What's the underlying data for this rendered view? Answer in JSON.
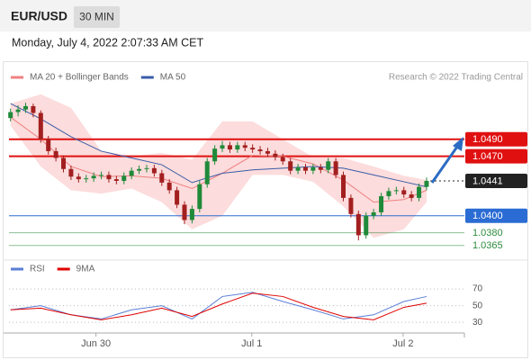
{
  "header": {
    "symbol": "EUR/USD",
    "interval": "30 MIN",
    "timestamp": "Monday, July 4, 2022 2:07:33 AM CET",
    "source": "Research © 2022 Trading Central"
  },
  "chart_data": [
    {
      "type": "candlestick",
      "open": [
        1.0515,
        1.0522,
        1.0525,
        1.0529,
        1.0521,
        1.049,
        1.0476,
        1.0468,
        1.0455,
        1.0446,
        1.0443,
        1.0444,
        1.0447,
        1.0448,
        1.0443,
        1.0441,
        1.0447,
        1.0453,
        1.0455,
        1.0456,
        1.045,
        1.0439,
        1.043,
        1.0413,
        1.0395,
        1.0408,
        1.0437,
        1.0464,
        1.0479,
        1.0483,
        1.0478,
        1.0483,
        1.048,
        1.0478,
        1.0476,
        1.0473,
        1.0469,
        1.0464,
        1.0453,
        1.0457,
        1.0453,
        1.0457,
        1.0454,
        1.0464,
        1.0448,
        1.0421,
        1.0402,
        1.0377,
        1.04,
        1.0404,
        1.0423,
        1.0429,
        1.043,
        1.0425,
        1.0421,
        1.0434
      ],
      "high": [
        1.0526,
        1.053,
        1.0533,
        1.0532,
        1.0524,
        1.0494,
        1.048,
        1.0471,
        1.0459,
        1.045,
        1.0448,
        1.0451,
        1.0452,
        1.0452,
        1.0447,
        1.0451,
        1.0457,
        1.0459,
        1.046,
        1.046,
        1.0454,
        1.0443,
        1.0434,
        1.0417,
        1.0412,
        1.0441,
        1.0468,
        1.0483,
        1.0488,
        1.0487,
        1.0487,
        1.0487,
        1.0484,
        1.0482,
        1.048,
        1.0477,
        1.0473,
        1.0468,
        1.0461,
        1.0461,
        1.0461,
        1.0461,
        1.0468,
        1.0468,
        1.0452,
        1.0425,
        1.0406,
        1.0404,
        1.0408,
        1.0427,
        1.0433,
        1.0434,
        1.0434,
        1.0429,
        1.0438,
        1.0445
      ],
      "low": [
        1.0511,
        1.0517,
        1.0521,
        1.0516,
        1.0486,
        1.0472,
        1.0464,
        1.0451,
        1.0442,
        1.0439,
        1.0439,
        1.044,
        1.0443,
        1.0439,
        1.0437,
        1.0437,
        1.0443,
        1.0449,
        1.0451,
        1.0446,
        1.0435,
        1.0426,
        1.0409,
        1.039,
        1.0391,
        1.0404,
        1.0433,
        1.046,
        1.0475,
        1.0474,
        1.0474,
        1.0476,
        1.0474,
        1.0472,
        1.0469,
        1.0465,
        1.046,
        1.0449,
        1.0449,
        1.0449,
        1.0449,
        1.045,
        1.045,
        1.0444,
        1.0417,
        1.0398,
        1.0371,
        1.0373,
        1.0396,
        1.04,
        1.0419,
        1.0425,
        1.0421,
        1.0417,
        1.0417,
        1.043
      ],
      "close": [
        1.0522,
        1.0525,
        1.0529,
        1.0521,
        1.049,
        1.0476,
        1.0468,
        1.0455,
        1.0446,
        1.0443,
        1.0444,
        1.0447,
        1.0448,
        1.0443,
        1.0441,
        1.0447,
        1.0453,
        1.0455,
        1.0456,
        1.045,
        1.0439,
        1.043,
        1.0413,
        1.0395,
        1.0408,
        1.0437,
        1.0464,
        1.0479,
        1.0483,
        1.0478,
        1.0483,
        1.048,
        1.0478,
        1.0476,
        1.0473,
        1.0469,
        1.0464,
        1.0453,
        1.0457,
        1.0453,
        1.0457,
        1.0454,
        1.0464,
        1.0448,
        1.0421,
        1.0402,
        1.0377,
        1.04,
        1.0404,
        1.0423,
        1.0429,
        1.043,
        1.0425,
        1.0421,
        1.0434,
        1.0441
      ],
      "up_color": "#1f8a3a",
      "down_color": "#a31f1f",
      "xlim": [
        -0.2,
        60
      ],
      "ylim": [
        1.0352,
        1.0548
      ],
      "overlays": [
        {
          "name": "MA 20 + Bollinger Bands",
          "color": "#f08080",
          "band_color": "#fbd3d3",
          "x": [
            0,
            4,
            8,
            12,
            16,
            20,
            24,
            28,
            32,
            36,
            40,
            44,
            48,
            52,
            55
          ],
          "values": [
            1.0516,
            1.049,
            1.0458,
            1.0446,
            1.0447,
            1.0444,
            1.0432,
            1.045,
            1.0471,
            1.047,
            1.0461,
            1.0442,
            1.0416,
            1.0419,
            1.043
          ],
          "upper": [
            1.0532,
            1.0543,
            1.0527,
            1.0476,
            1.047,
            1.0474,
            1.0466,
            1.0511,
            1.0511,
            1.049,
            1.0469,
            1.0468,
            1.0458,
            1.0447,
            1.0442
          ],
          "lower": [
            1.0506,
            1.0458,
            1.043,
            1.0426,
            1.0432,
            1.0416,
            1.0384,
            1.04,
            1.0448,
            1.0448,
            1.044,
            1.0411,
            1.0374,
            1.0384,
            1.0416
          ]
        },
        {
          "name": "MA 50",
          "color": "#3a5ca8",
          "x": [
            0,
            4,
            8,
            12,
            16,
            20,
            24,
            28,
            32,
            36,
            40,
            44,
            48,
            52,
            55
          ],
          "values": [
            1.0532,
            1.0514,
            1.0493,
            1.0476,
            1.0468,
            1.046,
            1.0439,
            1.045,
            1.0454,
            1.0456,
            1.0458,
            1.0456,
            1.0448,
            1.044,
            1.0434
          ]
        }
      ],
      "levels": [
        {
          "value": 1.049,
          "label": "1.0490",
          "color": "#e01010",
          "style": "solid",
          "boxed": true
        },
        {
          "value": 1.047,
          "label": "1.0470",
          "color": "#e01010",
          "style": "solid",
          "boxed": true
        },
        {
          "value": 1.0441,
          "label": "1.0441",
          "color": "#222222",
          "style": "dotted",
          "boxed": true
        },
        {
          "value": 1.04,
          "label": "1.0400",
          "color": "#2b6cd4",
          "style": "solid",
          "boxed": true
        },
        {
          "value": 1.038,
          "label": "1.0380",
          "color": "#2e8b3e",
          "style": "thin",
          "boxed": false
        },
        {
          "value": 1.0365,
          "label": "1.0365",
          "color": "#2e8b3e",
          "style": "thin",
          "boxed": false
        }
      ]
    },
    {
      "type": "line",
      "series": [
        {
          "name": "RSI",
          "color": "#5b7fd6",
          "x": [
            0,
            4,
            8,
            12,
            16,
            20,
            24,
            28,
            32,
            36,
            40,
            44,
            48,
            52,
            55
          ],
          "values": [
            45,
            50,
            39,
            34,
            45,
            50,
            34,
            61,
            66,
            55,
            45,
            34,
            39,
            55,
            61
          ]
        },
        {
          "name": "9MA",
          "color": "#e00000",
          "x": [
            0,
            4,
            8,
            12,
            16,
            20,
            24,
            28,
            32,
            36,
            40,
            44,
            48,
            52,
            55
          ],
          "values": [
            45,
            47,
            39,
            33,
            39,
            47,
            37,
            52,
            65,
            61,
            48,
            37,
            33,
            48,
            53
          ]
        }
      ],
      "xlim": [
        -0.2,
        60
      ],
      "ylim": [
        15,
        82
      ],
      "yticks": [
        30,
        50,
        70
      ],
      "grid": true,
      "xticks": [
        {
          "value": 11.3,
          "label": "Jun 30"
        },
        {
          "value": 31.9,
          "label": "Jul 1"
        },
        {
          "value": 51.9,
          "label": "Jul 2"
        }
      ]
    }
  ]
}
